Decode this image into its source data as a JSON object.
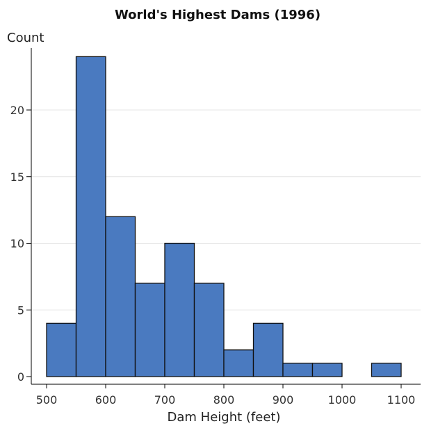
{
  "chart_data": {
    "type": "bar",
    "title": "World's Highest Dams (1996)",
    "xlabel": "Dam Height (feet)",
    "ylabel": "Count",
    "bin_width": 50,
    "categories": [
      "500-550",
      "550-600",
      "600-650",
      "650-700",
      "700-750",
      "750-800",
      "800-850",
      "850-900",
      "900-950",
      "950-1000",
      "1000-1050",
      "1050-1100"
    ],
    "bins": [
      {
        "start": 500,
        "end": 550,
        "count": 4
      },
      {
        "start": 550,
        "end": 600,
        "count": 24
      },
      {
        "start": 600,
        "end": 650,
        "count": 12
      },
      {
        "start": 650,
        "end": 700,
        "count": 7
      },
      {
        "start": 700,
        "end": 750,
        "count": 10
      },
      {
        "start": 750,
        "end": 800,
        "count": 7
      },
      {
        "start": 800,
        "end": 850,
        "count": 2
      },
      {
        "start": 850,
        "end": 900,
        "count": 4
      },
      {
        "start": 900,
        "end": 950,
        "count": 1
      },
      {
        "start": 950,
        "end": 1000,
        "count": 1
      },
      {
        "start": 1000,
        "end": 1050,
        "count": 0
      },
      {
        "start": 1050,
        "end": 1100,
        "count": 1
      }
    ],
    "values": [
      4,
      24,
      12,
      7,
      10,
      7,
      2,
      4,
      1,
      1,
      0,
      1
    ],
    "xlim": [
      500,
      1100
    ],
    "ylim": [
      0,
      24
    ],
    "x_ticks": [
      500,
      600,
      700,
      800,
      900,
      1000,
      1100
    ],
    "y_ticks": [
      0,
      5,
      10,
      15,
      20
    ],
    "grid": true,
    "legend": false,
    "bar_color": "#4a7ac0",
    "edge_color": "#111111"
  }
}
